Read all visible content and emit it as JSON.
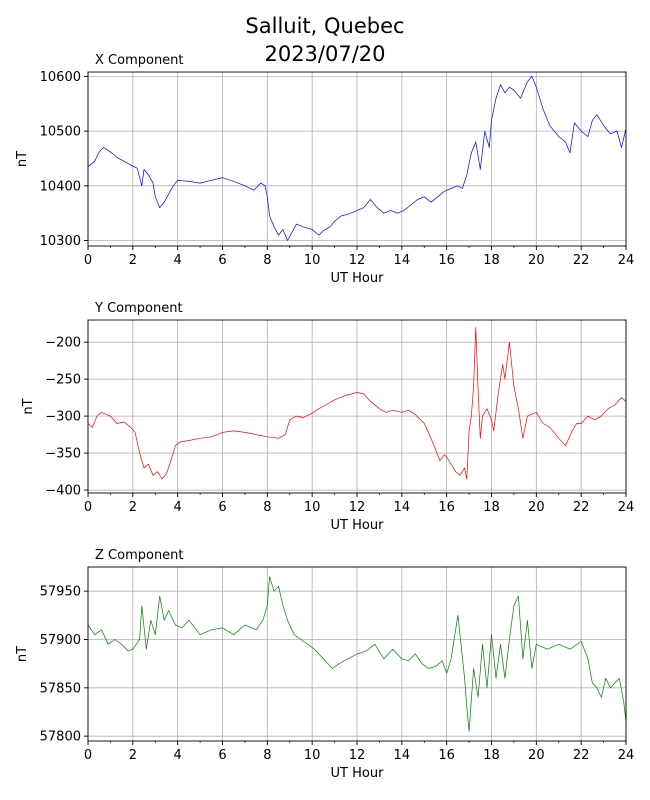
{
  "figure": {
    "title_line1": "Salluit, Quebec",
    "title_line2": "2023/07/20"
  },
  "chart_data": [
    {
      "type": "line",
      "title": "X Component",
      "xlabel": "UT Hour",
      "ylabel": "nT",
      "xlim": [
        0,
        24
      ],
      "ylim": [
        10290,
        10608
      ],
      "xticks": [
        0,
        2,
        4,
        6,
        8,
        10,
        12,
        14,
        16,
        18,
        20,
        22,
        24
      ],
      "yticks": [
        10300,
        10400,
        10500,
        10600
      ],
      "grid": true,
      "color": "#0000ff",
      "x": [
        0,
        0.3,
        0.5,
        0.7,
        1.0,
        1.3,
        1.6,
        1.9,
        2.2,
        2.4,
        2.5,
        2.7,
        2.9,
        3.0,
        3.2,
        3.4,
        3.6,
        3.8,
        4.0,
        4.5,
        5.0,
        5.5,
        6.0,
        6.5,
        7.0,
        7.4,
        7.7,
        7.9,
        8.0,
        8.1,
        8.3,
        8.5,
        8.7,
        8.9,
        9.1,
        9.3,
        9.6,
        10.0,
        10.3,
        10.5,
        10.8,
        11.0,
        11.3,
        11.6,
        12.0,
        12.3,
        12.6,
        12.9,
        13.2,
        13.5,
        13.8,
        14.1,
        14.4,
        14.7,
        15.0,
        15.3,
        15.6,
        15.9,
        16.2,
        16.5,
        16.7,
        16.9,
        17.1,
        17.3,
        17.5,
        17.7,
        17.9,
        18.0,
        18.2,
        18.4,
        18.6,
        18.8,
        19.0,
        19.3,
        19.6,
        19.8,
        20.0,
        20.3,
        20.6,
        21.0,
        21.3,
        21.5,
        21.7,
        22.0,
        22.3,
        22.5,
        22.7,
        23.0,
        23.3,
        23.6,
        23.8,
        24.0
      ],
      "y": [
        10435,
        10445,
        10462,
        10470,
        10462,
        10452,
        10445,
        10438,
        10432,
        10400,
        10430,
        10420,
        10405,
        10380,
        10360,
        10370,
        10385,
        10400,
        10410,
        10408,
        10405,
        10410,
        10415,
        10408,
        10400,
        10392,
        10405,
        10400,
        10380,
        10345,
        10325,
        10310,
        10320,
        10300,
        10315,
        10330,
        10325,
        10320,
        10310,
        10318,
        10325,
        10335,
        10345,
        10348,
        10355,
        10360,
        10375,
        10360,
        10350,
        10355,
        10350,
        10355,
        10365,
        10375,
        10380,
        10370,
        10380,
        10390,
        10395,
        10400,
        10395,
        10420,
        10460,
        10480,
        10430,
        10500,
        10470,
        10520,
        10560,
        10585,
        10570,
        10580,
        10575,
        10560,
        10590,
        10600,
        10580,
        10540,
        10510,
        10490,
        10480,
        10460,
        10515,
        10500,
        10490,
        10520,
        10530,
        10510,
        10495,
        10500,
        10470,
        10505
      ]
    },
    {
      "type": "line",
      "title": "Y Component",
      "xlabel": "UT Hour",
      "ylabel": "nT",
      "xlim": [
        0,
        24
      ],
      "ylim": [
        -404,
        -170
      ],
      "xticks": [
        0,
        2,
        4,
        6,
        8,
        10,
        12,
        14,
        16,
        18,
        20,
        22,
        24
      ],
      "yticks": [
        -200,
        -250,
        -300,
        -350,
        -400
      ],
      "grid": true,
      "color": "#ff0000",
      "x": [
        0,
        0.2,
        0.4,
        0.6,
        1.0,
        1.3,
        1.6,
        1.9,
        2.1,
        2.3,
        2.5,
        2.7,
        2.9,
        3.1,
        3.3,
        3.5,
        3.7,
        3.9,
        4.1,
        4.5,
        5.0,
        5.5,
        6.0,
        6.5,
        7.0,
        7.5,
        8.0,
        8.5,
        8.8,
        9.0,
        9.3,
        9.6,
        10.0,
        10.3,
        10.6,
        11.0,
        11.5,
        12.0,
        12.3,
        12.6,
        13.0,
        13.3,
        13.6,
        14.0,
        14.3,
        14.6,
        15.0,
        15.3,
        15.5,
        15.7,
        15.9,
        16.1,
        16.4,
        16.6,
        16.8,
        16.9,
        17.0,
        17.1,
        17.2,
        17.3,
        17.4,
        17.5,
        17.6,
        17.8,
        18.0,
        18.1,
        18.3,
        18.5,
        18.6,
        18.8,
        19.0,
        19.2,
        19.4,
        19.6,
        20.0,
        20.3,
        20.6,
        21.0,
        21.3,
        21.6,
        21.8,
        22.0,
        22.3,
        22.6,
        22.9,
        23.2,
        23.5,
        23.8,
        24.0
      ],
      "y": [
        -310,
        -315,
        -300,
        -295,
        -300,
        -310,
        -308,
        -315,
        -322,
        -350,
        -370,
        -365,
        -380,
        -375,
        -385,
        -378,
        -360,
        -340,
        -335,
        -333,
        -330,
        -328,
        -322,
        -320,
        -322,
        -325,
        -328,
        -330,
        -325,
        -305,
        -300,
        -302,
        -296,
        -290,
        -285,
        -278,
        -272,
        -268,
        -270,
        -280,
        -290,
        -295,
        -292,
        -295,
        -292,
        -298,
        -310,
        -330,
        -345,
        -360,
        -352,
        -360,
        -375,
        -380,
        -370,
        -385,
        -320,
        -300,
        -260,
        -180,
        -265,
        -330,
        -300,
        -290,
        -305,
        -320,
        -270,
        -230,
        -250,
        -200,
        -260,
        -290,
        -330,
        -300,
        -295,
        -310,
        -315,
        -330,
        -340,
        -320,
        -310,
        -310,
        -300,
        -305,
        -300,
        -290,
        -285,
        -275,
        -280
      ]
    },
    {
      "type": "line",
      "title": "Z Component",
      "xlabel": "UT Hour",
      "ylabel": "nT",
      "xlim": [
        0,
        24
      ],
      "ylim": [
        57795,
        57975
      ],
      "xticks": [
        0,
        2,
        4,
        6,
        8,
        10,
        12,
        14,
        16,
        18,
        20,
        22,
        24
      ],
      "yticks": [
        57800,
        57850,
        57900,
        57950
      ],
      "grid": true,
      "color": "#008000",
      "x": [
        0,
        0.3,
        0.6,
        0.9,
        1.2,
        1.5,
        1.8,
        2.0,
        2.3,
        2.4,
        2.6,
        2.8,
        3.0,
        3.2,
        3.4,
        3.6,
        3.9,
        4.2,
        4.5,
        5.0,
        5.5,
        6.0,
        6.5,
        7.0,
        7.5,
        7.8,
        8.0,
        8.1,
        8.3,
        8.5,
        8.7,
        8.9,
        9.2,
        9.5,
        9.8,
        10.1,
        10.5,
        10.9,
        11.2,
        11.6,
        12.0,
        12.4,
        12.8,
        13.2,
        13.6,
        14.0,
        14.3,
        14.6,
        14.9,
        15.2,
        15.5,
        15.8,
        16.0,
        16.2,
        16.5,
        16.8,
        16.9,
        17.0,
        17.2,
        17.4,
        17.6,
        17.8,
        18.0,
        18.2,
        18.4,
        18.6,
        18.8,
        19.0,
        19.2,
        19.4,
        19.6,
        19.8,
        20.0,
        20.5,
        21.0,
        21.5,
        22.0,
        22.3,
        22.5,
        22.7,
        22.9,
        23.1,
        23.3,
        23.5,
        23.7,
        23.9,
        24.0
      ],
      "y": [
        57915,
        57905,
        57910,
        57895,
        57900,
        57895,
        57888,
        57890,
        57900,
        57935,
        57890,
        57920,
        57905,
        57945,
        57920,
        57930,
        57915,
        57912,
        57920,
        57905,
        57910,
        57912,
        57905,
        57915,
        57910,
        57920,
        57935,
        57965,
        57950,
        57955,
        57935,
        57920,
        57905,
        57900,
        57895,
        57890,
        57880,
        57870,
        57875,
        57880,
        57885,
        57888,
        57895,
        57880,
        57890,
        57880,
        57878,
        57885,
        57875,
        57870,
        57872,
        57878,
        57865,
        57880,
        57925,
        57860,
        57830,
        57805,
        57870,
        57840,
        57895,
        57850,
        57905,
        57860,
        57895,
        57860,
        57900,
        57935,
        57945,
        57880,
        57920,
        57870,
        57895,
        57890,
        57895,
        57890,
        57898,
        57880,
        57855,
        57850,
        57840,
        57860,
        57850,
        57855,
        57860,
        57835,
        57815
      ]
    }
  ]
}
